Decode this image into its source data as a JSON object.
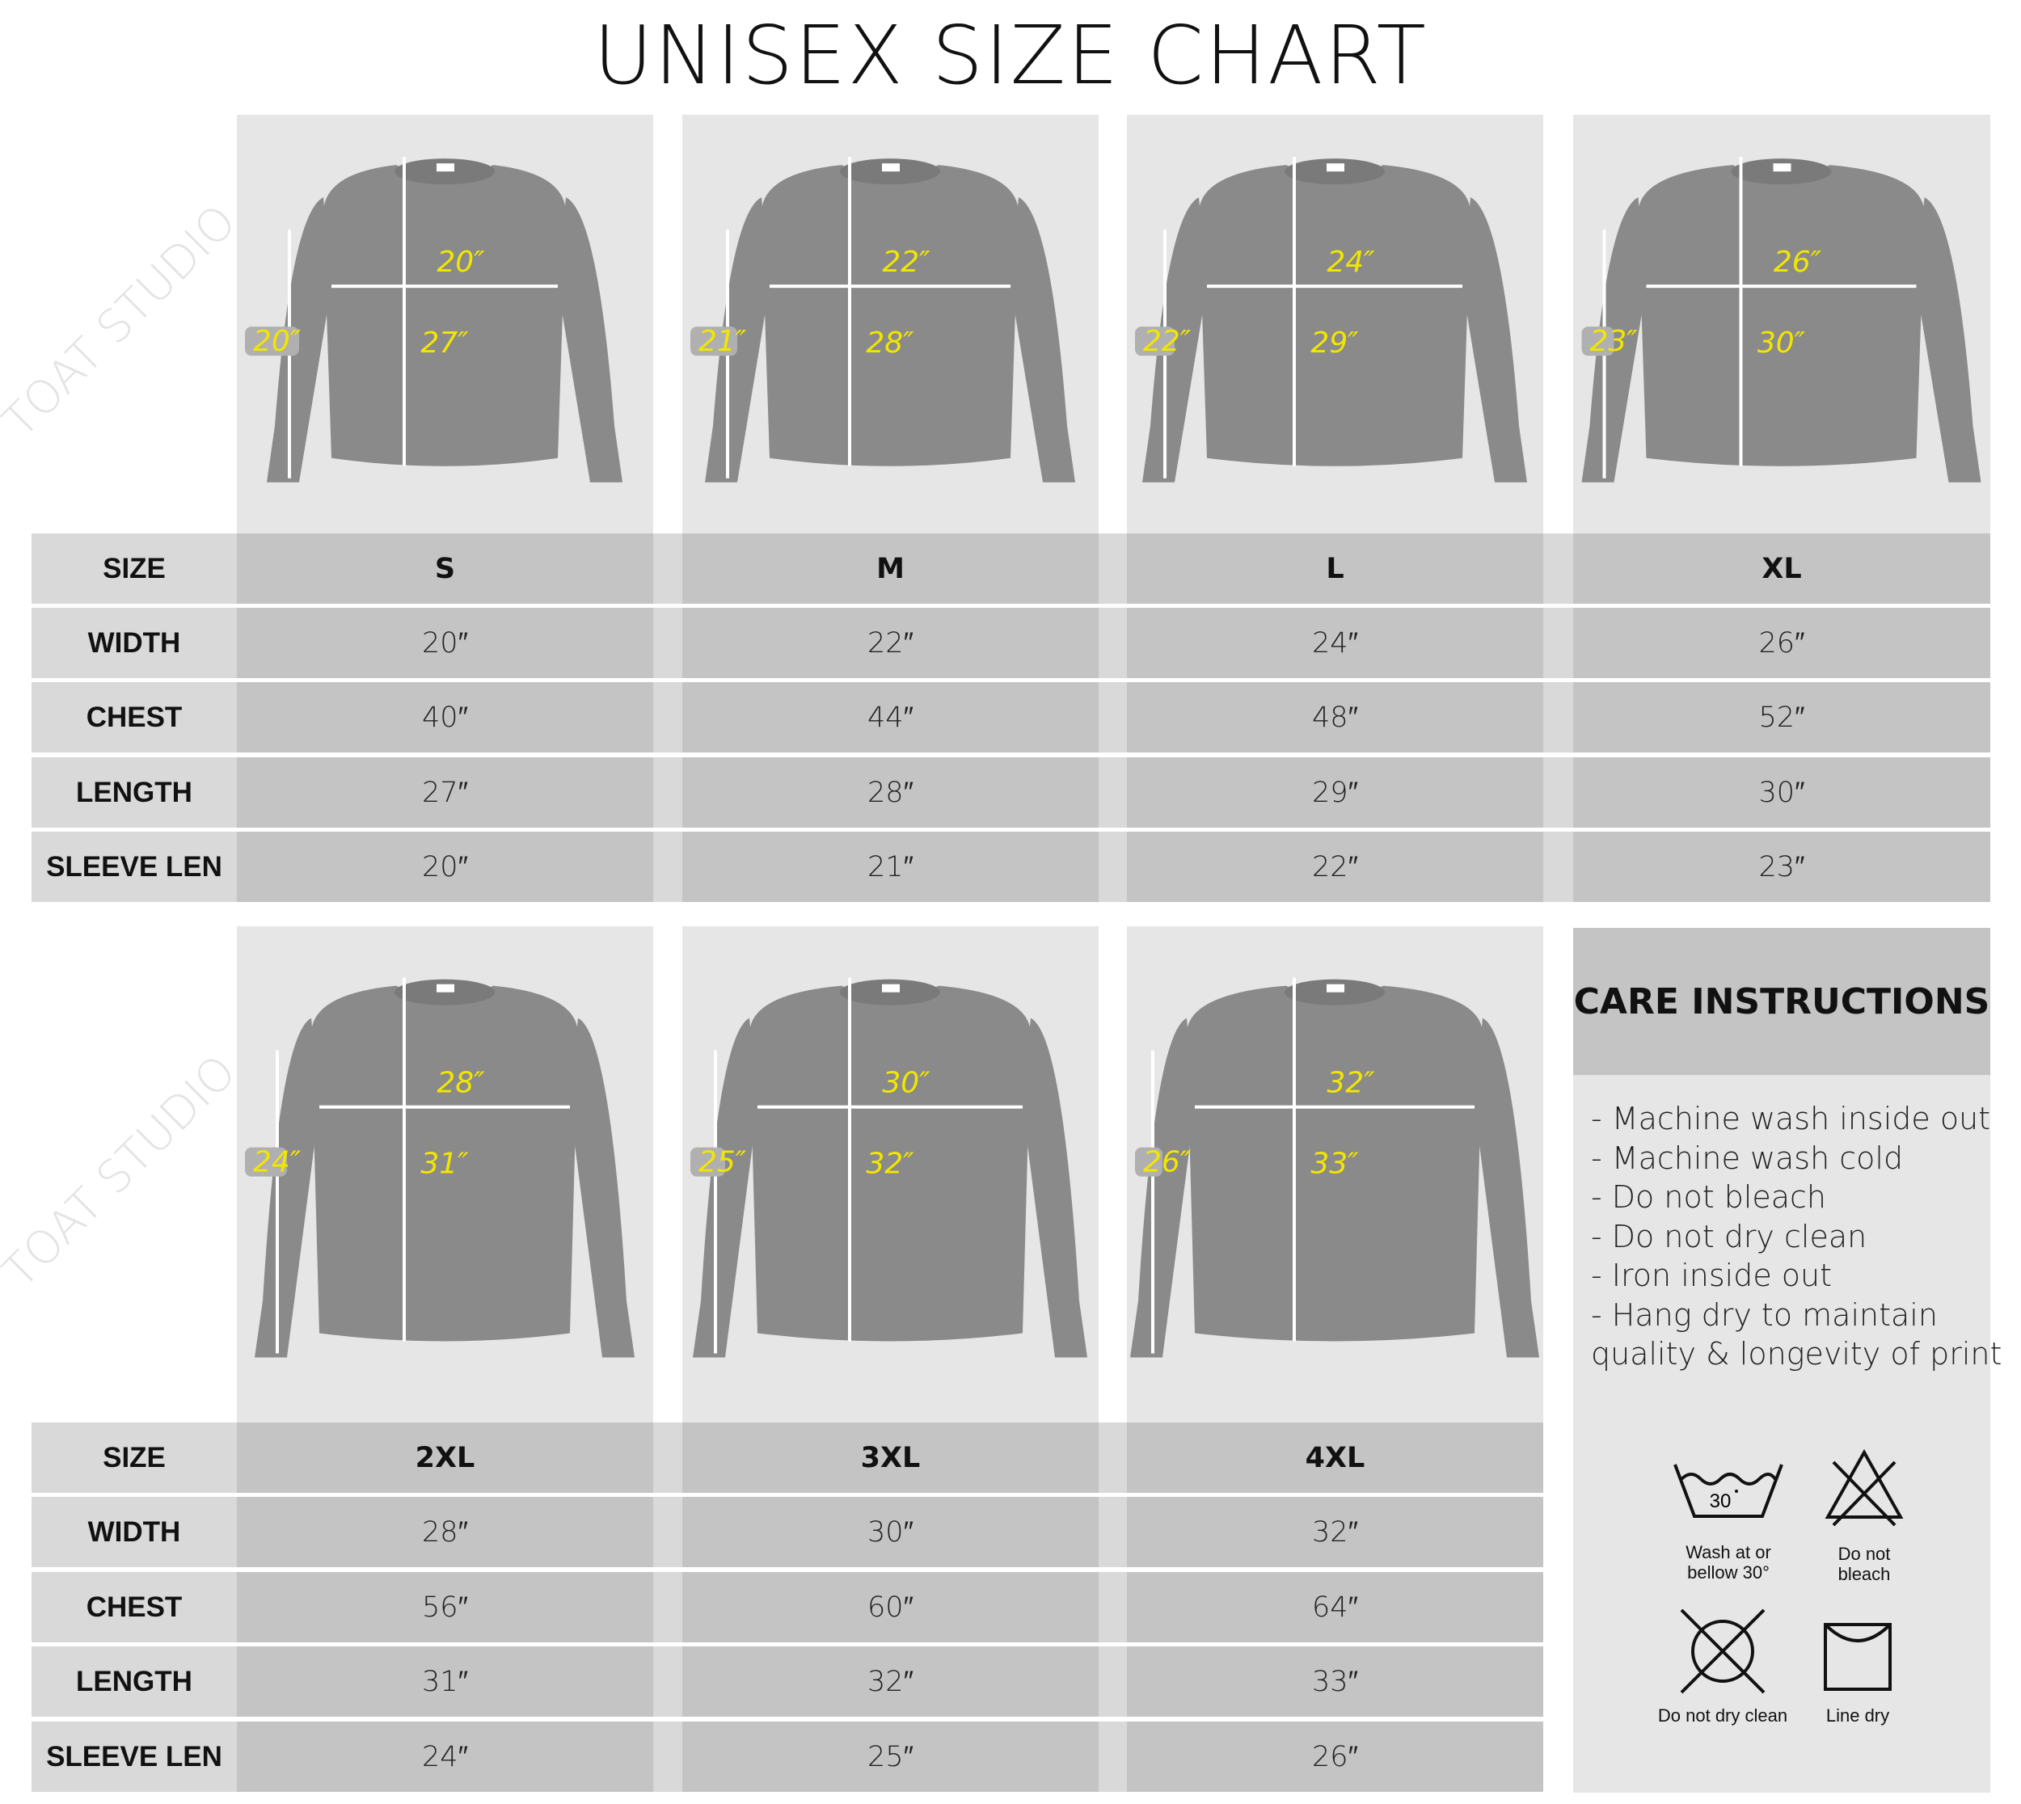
{
  "title": "UNISEX SIZE CHART",
  "watermark": "TOAT STUDIO",
  "row_labels": [
    "SIZE",
    "WIDTH",
    "CHEST",
    "LENGTH",
    "SLEEVE LEN"
  ],
  "sizes": [
    {
      "size": "S",
      "width": "20″",
      "chest": "40″",
      "length": "27″",
      "sleeve": "20″"
    },
    {
      "size": "M",
      "width": "22″",
      "chest": "44″",
      "length": "28″",
      "sleeve": "21″"
    },
    {
      "size": "L",
      "width": "24″",
      "chest": "48″",
      "length": "29″",
      "sleeve": "22″"
    },
    {
      "size": "XL",
      "width": "26″",
      "chest": "52″",
      "length": "30″",
      "sleeve": "23″"
    },
    {
      "size": "2XL",
      "width": "28″",
      "chest": "56″",
      "length": "31″",
      "sleeve": "24″"
    },
    {
      "size": "3XL",
      "width": "30″",
      "chest": "60″",
      "length": "32″",
      "sleeve": "25″"
    },
    {
      "size": "4XL",
      "width": "32″",
      "chest": "64″",
      "length": "33″",
      "sleeve": "26″"
    }
  ],
  "care": {
    "title": "CARE INSTRUCTIONS",
    "items": [
      "- Machine wash inside out",
      "- Machine wash cold",
      "- Do not bleach",
      "- Do not dry clean",
      "- Iron inside out",
      "- Hang dry to maintain",
      "quality & longevity of print"
    ],
    "icons": [
      {
        "icon": "wash-30-icon",
        "label_lines": [
          "Wash at or",
          "bellow 30°"
        ],
        "temp": "30"
      },
      {
        "icon": "do-not-bleach-icon",
        "label_lines": [
          "Do not",
          "bleach"
        ]
      },
      {
        "icon": "do-not-dry-clean-icon",
        "label_lines": [
          "Do not dry clean"
        ]
      },
      {
        "icon": "line-dry-icon",
        "label_lines": [
          "Line dry"
        ]
      }
    ]
  },
  "colors": {
    "panel": "#e6e6e6",
    "header_cell": "#c4c4c4",
    "label_cell": "#d9d9d9",
    "garment": "#8a8a8a",
    "measure_label": "#f2e600",
    "arrow": "#ffffff"
  }
}
